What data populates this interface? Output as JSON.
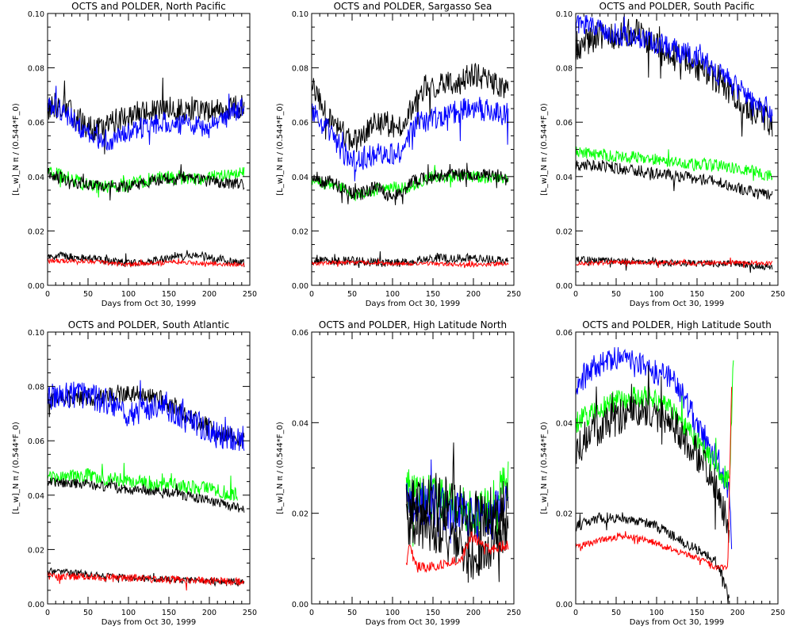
{
  "figure": {
    "colors": {
      "black": "#000000",
      "blue": "#0000ff",
      "green": "#00ff00",
      "red": "#ff0000"
    }
  },
  "chart_data": [
    {
      "type": "line",
      "title": "OCTS and POLDER, North Pacific",
      "xlabel": "Days from Oct 30, 1999",
      "ylabel": "[L_w]_N π / (0.544*F_0)",
      "xlim": [
        0,
        250
      ],
      "ylim": [
        0,
        0.1
      ],
      "xticks": [
        "0",
        "50",
        "100",
        "150",
        "200",
        "250"
      ],
      "yticks": [
        "0.00",
        "0.02",
        "0.04",
        "0.06",
        "0.08",
        "0.10"
      ],
      "series": [
        {
          "name": "black-high",
          "color": "#000000",
          "x": [
            0,
            20,
            40,
            60,
            100,
            140,
            180,
            200,
            243
          ],
          "y": [
            0.065,
            0.066,
            0.06,
            0.057,
            0.063,
            0.064,
            0.065,
            0.064,
            0.066
          ],
          "noise": 0.0045
        },
        {
          "name": "blue-high",
          "color": "#0000ff",
          "x": [
            0,
            20,
            40,
            60,
            80,
            100,
            140,
            180,
            200,
            243
          ],
          "y": [
            0.067,
            0.064,
            0.058,
            0.054,
            0.053,
            0.056,
            0.06,
            0.059,
            0.058,
            0.066
          ],
          "noise": 0.004
        },
        {
          "name": "green-mid",
          "color": "#00ff00",
          "x": [
            0,
            30,
            60,
            100,
            140,
            180,
            243
          ],
          "y": [
            0.042,
            0.039,
            0.036,
            0.037,
            0.04,
            0.039,
            0.041
          ],
          "noise": 0.0025
        },
        {
          "name": "black-mid",
          "color": "#000000",
          "x": [
            0,
            30,
            60,
            100,
            140,
            180,
            243
          ],
          "y": [
            0.041,
            0.038,
            0.037,
            0.036,
            0.039,
            0.039,
            0.037
          ],
          "noise": 0.0022
        },
        {
          "name": "black-low",
          "color": "#000000",
          "x": [
            0,
            50,
            100,
            150,
            190,
            243
          ],
          "y": [
            0.011,
            0.01,
            0.008,
            0.01,
            0.011,
            0.008
          ],
          "noise": 0.0015
        },
        {
          "name": "red-low",
          "color": "#ff0000",
          "x": [
            0,
            50,
            100,
            150,
            200,
            243
          ],
          "y": [
            0.009,
            0.009,
            0.0075,
            0.0085,
            0.008,
            0.0075
          ],
          "noise": 0.0008
        }
      ]
    },
    {
      "type": "line",
      "title": "OCTS and POLDER, Sargasso Sea",
      "xlabel": "Days from Oct 30, 1999",
      "ylabel": "[L_w]_N π / (0.544*F_0)",
      "xlim": [
        0,
        250
      ],
      "ylim": [
        0,
        0.1
      ],
      "xticks": [
        "0",
        "50",
        "100",
        "150",
        "200",
        "250"
      ],
      "yticks": [
        "0.00",
        "0.02",
        "0.04",
        "0.06",
        "0.08",
        "0.10"
      ],
      "series": [
        {
          "name": "black-high",
          "color": "#000000",
          "x": [
            0,
            20,
            50,
            80,
            110,
            140,
            180,
            200,
            243
          ],
          "y": [
            0.073,
            0.063,
            0.052,
            0.06,
            0.058,
            0.073,
            0.075,
            0.078,
            0.072
          ],
          "noise": 0.0045
        },
        {
          "name": "blue-high",
          "color": "#0000ff",
          "x": [
            0,
            20,
            50,
            80,
            110,
            130,
            170,
            200,
            230,
            243
          ],
          "y": [
            0.064,
            0.057,
            0.045,
            0.049,
            0.049,
            0.06,
            0.063,
            0.066,
            0.063,
            0.063
          ],
          "noise": 0.0045
        },
        {
          "name": "green-mid",
          "color": "#00ff00",
          "x": [
            0,
            30,
            55,
            90,
            120,
            150,
            200,
            243
          ],
          "y": [
            0.038,
            0.037,
            0.033,
            0.036,
            0.036,
            0.04,
            0.04,
            0.039
          ],
          "noise": 0.0022
        },
        {
          "name": "black-mid",
          "color": "#000000",
          "x": [
            0,
            30,
            55,
            80,
            100,
            125,
            150,
            200,
            243
          ],
          "y": [
            0.039,
            0.037,
            0.033,
            0.036,
            0.032,
            0.038,
            0.04,
            0.041,
            0.04
          ],
          "noise": 0.0025
        },
        {
          "name": "black-low",
          "color": "#000000",
          "x": [
            0,
            50,
            100,
            150,
            200,
            243
          ],
          "y": [
            0.009,
            0.009,
            0.008,
            0.01,
            0.01,
            0.009
          ],
          "noise": 0.0016
        },
        {
          "name": "red-low",
          "color": "#ff0000",
          "x": [
            0,
            50,
            100,
            150,
            200,
            243
          ],
          "y": [
            0.008,
            0.0085,
            0.008,
            0.008,
            0.0075,
            0.008
          ],
          "noise": 0.0007
        }
      ]
    },
    {
      "type": "line",
      "title": "OCTS and POLDER, South Pacific",
      "xlabel": "Days from Oct 30, 1999",
      "ylabel": "[L_w]_N π / (0.544*F_0)",
      "xlim": [
        0,
        250
      ],
      "ylim": [
        0,
        0.1
      ],
      "xticks": [
        "0",
        "50",
        "100",
        "150",
        "200",
        "250"
      ],
      "yticks": [
        "0.00",
        "0.02",
        "0.04",
        "0.06",
        "0.08",
        "0.10"
      ],
      "series": [
        {
          "name": "black-high",
          "color": "#000000",
          "x": [
            0,
            30,
            80,
            110,
            150,
            180,
            210,
            243
          ],
          "y": [
            0.088,
            0.092,
            0.093,
            0.085,
            0.081,
            0.075,
            0.066,
            0.06
          ],
          "noise": 0.0055
        },
        {
          "name": "blue-high",
          "color": "#0000ff",
          "x": [
            0,
            30,
            80,
            100,
            150,
            180,
            210,
            243
          ],
          "y": [
            0.096,
            0.094,
            0.091,
            0.089,
            0.084,
            0.077,
            0.07,
            0.064
          ],
          "noise": 0.0045
        },
        {
          "name": "green-mid",
          "color": "#00ff00",
          "x": [
            0,
            30,
            80,
            130,
            180,
            220,
            243
          ],
          "y": [
            0.049,
            0.048,
            0.047,
            0.045,
            0.044,
            0.042,
            0.04
          ],
          "noise": 0.0022
        },
        {
          "name": "black-mid",
          "color": "#000000",
          "x": [
            0,
            30,
            80,
            130,
            180,
            220,
            243
          ],
          "y": [
            0.044,
            0.044,
            0.042,
            0.04,
            0.038,
            0.034,
            0.033
          ],
          "noise": 0.0022
        },
        {
          "name": "black-low",
          "color": "#000000",
          "x": [
            0,
            50,
            100,
            150,
            200,
            243
          ],
          "y": [
            0.0095,
            0.009,
            0.0085,
            0.008,
            0.008,
            0.0065
          ],
          "noise": 0.0013
        },
        {
          "name": "red-low",
          "color": "#ff0000",
          "x": [
            0,
            50,
            100,
            150,
            200,
            243
          ],
          "y": [
            0.008,
            0.0085,
            0.0085,
            0.008,
            0.0085,
            0.008
          ],
          "noise": 0.0008
        }
      ]
    },
    {
      "type": "line",
      "title": "OCTS and POLDER, South Atlantic",
      "xlabel": "Days from Oct 30, 1999",
      "ylabel": "[L_w]_N π / (0.544*F_0)",
      "xlim": [
        0,
        250
      ],
      "ylim": [
        0,
        0.1
      ],
      "xticks": [
        "0",
        "50",
        "100",
        "150",
        "200",
        "250"
      ],
      "yticks": [
        "0.00",
        "0.02",
        "0.04",
        "0.06",
        "0.08",
        "0.10"
      ],
      "series": [
        {
          "name": "black-high",
          "color": "#000000",
          "x": [
            0,
            40,
            80,
            110,
            150,
            180,
            210,
            243
          ],
          "y": [
            0.075,
            0.076,
            0.076,
            0.078,
            0.074,
            0.068,
            0.063,
            0.06
          ],
          "noise": 0.0035
        },
        {
          "name": "blue-high",
          "color": "#0000ff",
          "x": [
            0,
            40,
            80,
            100,
            140,
            180,
            210,
            243
          ],
          "y": [
            0.076,
            0.077,
            0.074,
            0.07,
            0.073,
            0.067,
            0.062,
            0.061
          ],
          "noise": 0.005
        },
        {
          "name": "green-mid",
          "color": "#00ff00",
          "x": [
            0,
            50,
            100,
            150,
            200,
            235
          ],
          "y": [
            0.046,
            0.047,
            0.045,
            0.044,
            0.042,
            0.04
          ],
          "noise": 0.0028
        },
        {
          "name": "black-mid",
          "color": "#000000",
          "x": [
            0,
            50,
            100,
            150,
            200,
            243
          ],
          "y": [
            0.045,
            0.044,
            0.042,
            0.041,
            0.038,
            0.035
          ],
          "noise": 0.0018
        },
        {
          "name": "black-low",
          "color": "#000000",
          "x": [
            0,
            50,
            100,
            150,
            200,
            243
          ],
          "y": [
            0.012,
            0.011,
            0.0095,
            0.009,
            0.0085,
            0.008
          ],
          "noise": 0.0012
        },
        {
          "name": "red-low",
          "color": "#ff0000",
          "x": [
            0,
            50,
            100,
            150,
            200,
            243
          ],
          "y": [
            0.01,
            0.01,
            0.0095,
            0.009,
            0.0085,
            0.008
          ],
          "noise": 0.0014
        }
      ]
    },
    {
      "type": "line",
      "title": "OCTS and POLDER, High Latitude North",
      "xlabel": "Days from Oct 30, 1999",
      "ylabel": "[L_w]_N π / (0.544*F_0)",
      "xlim": [
        0,
        250
      ],
      "ylim": [
        0,
        0.06
      ],
      "xticks": [
        "0",
        "50",
        "100",
        "150",
        "200",
        "250"
      ],
      "yticks": [
        "0.00",
        "0.02",
        "0.04",
        "0.06"
      ],
      "series": [
        {
          "name": "green",
          "color": "#00ff00",
          "x": [
            117,
            140,
            170,
            200,
            220,
            243
          ],
          "y": [
            0.025,
            0.024,
            0.022,
            0.02,
            0.021,
            0.028
          ],
          "noise": 0.005
        },
        {
          "name": "blue",
          "color": "#0000ff",
          "x": [
            117,
            140,
            170,
            200,
            220,
            243
          ],
          "y": [
            0.022,
            0.022,
            0.021,
            0.019,
            0.018,
            0.024
          ],
          "noise": 0.005
        },
        {
          "name": "black-a",
          "color": "#000000",
          "x": [
            117,
            140,
            170,
            200,
            220,
            243
          ],
          "y": [
            0.022,
            0.023,
            0.022,
            0.019,
            0.02,
            0.021
          ],
          "noise": 0.006
        },
        {
          "name": "black-b",
          "color": "#000000",
          "x": [
            117,
            140,
            170,
            200,
            220,
            243
          ],
          "y": [
            0.018,
            0.017,
            0.014,
            0.01,
            0.012,
            0.016
          ],
          "noise": 0.005
        },
        {
          "name": "red",
          "color": "#ff0000",
          "x": [
            117,
            120,
            130,
            160,
            185,
            198,
            220,
            243
          ],
          "y": [
            0.008,
            0.013,
            0.008,
            0.0085,
            0.01,
            0.015,
            0.012,
            0.013
          ],
          "noise": 0.0012
        }
      ]
    },
    {
      "type": "line",
      "title": "OCTS and POLDER, High Latitude South",
      "xlabel": "Days from Oct 30, 1999",
      "ylabel": "[L_w]_N π / (0.544*F_0)",
      "xlim": [
        0,
        250
      ],
      "ylim": [
        0,
        0.06
      ],
      "xticks": [
        "0",
        "50",
        "100",
        "150",
        "200",
        "250"
      ],
      "yticks": [
        "0.00",
        "0.02",
        "0.04",
        "0.06"
      ],
      "series": [
        {
          "name": "blue",
          "color": "#0000ff",
          "x": [
            0,
            20,
            50,
            90,
            120,
            150,
            175,
            190,
            193
          ],
          "y": [
            0.048,
            0.052,
            0.054,
            0.052,
            0.05,
            0.04,
            0.032,
            0.025,
            0.012
          ],
          "noise": 0.003
        },
        {
          "name": "green",
          "color": "#00ff00",
          "x": [
            0,
            20,
            50,
            90,
            120,
            150,
            175,
            190,
            195
          ],
          "y": [
            0.04,
            0.042,
            0.045,
            0.046,
            0.043,
            0.036,
            0.03,
            0.027,
            0.055
          ],
          "noise": 0.0025
        },
        {
          "name": "black-a",
          "color": "#000000",
          "x": [
            0,
            20,
            50,
            90,
            120,
            150,
            175,
            190
          ],
          "y": [
            0.034,
            0.038,
            0.041,
            0.043,
            0.04,
            0.033,
            0.026,
            0.015
          ],
          "noise": 0.004
        },
        {
          "name": "black-b",
          "color": "#000000",
          "x": [
            0,
            30,
            60,
            90,
            120,
            150,
            175,
            190
          ],
          "y": [
            0.017,
            0.019,
            0.019,
            0.018,
            0.015,
            0.012,
            0.009,
            0.001
          ],
          "noise": 0.0012
        },
        {
          "name": "red",
          "color": "#ff0000",
          "x": [
            0,
            30,
            60,
            90,
            120,
            150,
            175,
            188,
            193
          ],
          "y": [
            0.0125,
            0.014,
            0.015,
            0.014,
            0.012,
            0.01,
            0.008,
            0.008,
            0.05
          ],
          "noise": 0.0007
        }
      ]
    }
  ]
}
